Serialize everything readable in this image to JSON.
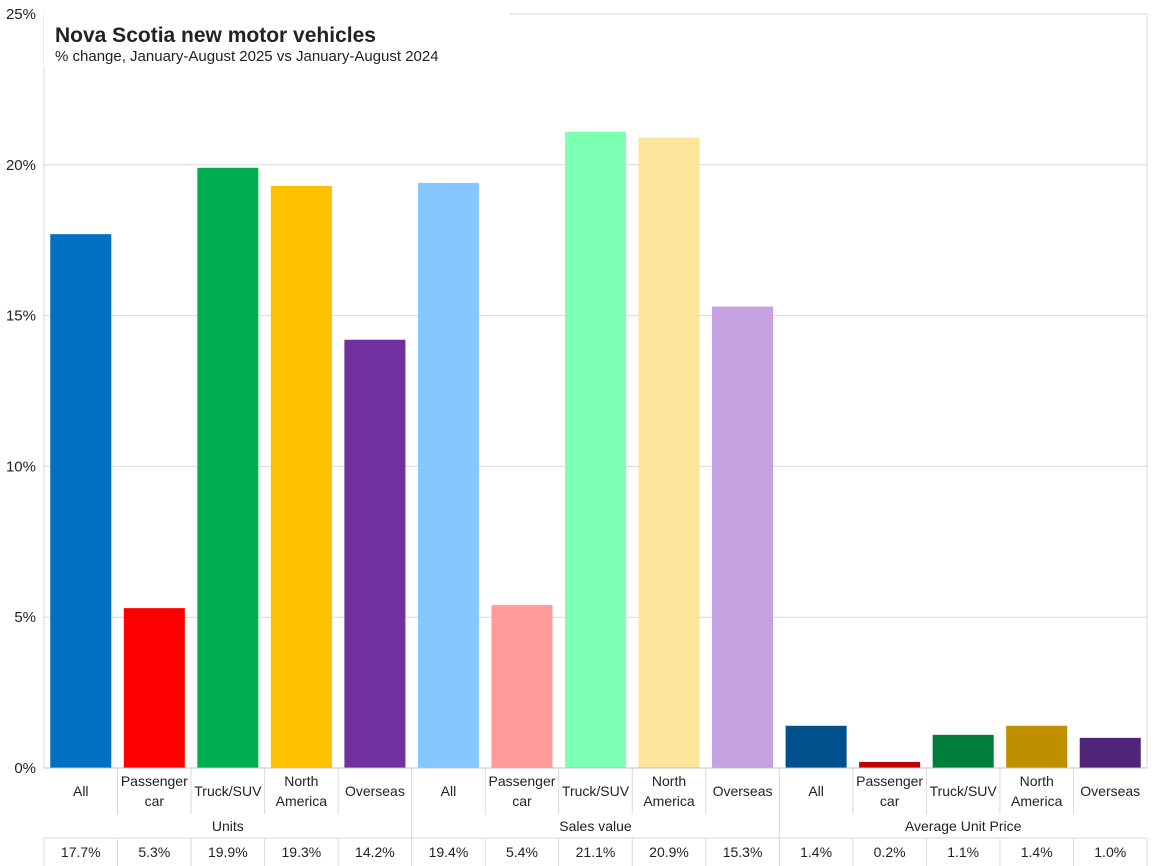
{
  "chart_data": {
    "type": "bar",
    "title": "Nova Scotia new motor vehicles",
    "subtitle": "% change, January-August 2025 vs January-August 2024",
    "y_ticks": [
      "0%",
      "5%",
      "10%",
      "15%",
      "20%",
      "25%"
    ],
    "ylim": [
      0,
      25
    ],
    "grid": true,
    "groups": [
      {
        "name": "Units",
        "bars": [
          {
            "category": "All",
            "value": 17.7,
            "label": "17.7%",
            "color": "#0070C0"
          },
          {
            "category": "Passenger car",
            "value": 5.3,
            "label": "5.3%",
            "color": "#FF0000"
          },
          {
            "category": "Truck/SUV",
            "value": 19.9,
            "label": "19.9%",
            "color": "#00B050"
          },
          {
            "category": "North America",
            "value": 19.3,
            "label": "19.3%",
            "color": "#FFC000"
          },
          {
            "category": "Overseas",
            "value": 14.2,
            "label": "14.2%",
            "color": "#7030A0"
          }
        ]
      },
      {
        "name": "Sales value",
        "bars": [
          {
            "category": "All",
            "value": 19.4,
            "label": "19.4%",
            "color": "#85C8FF"
          },
          {
            "category": "Passenger car",
            "value": 5.4,
            "label": "5.4%",
            "color": "#FF9B9B"
          },
          {
            "category": "Truck/SUV",
            "value": 21.1,
            "label": "21.1%",
            "color": "#7DFFB4"
          },
          {
            "category": "North America",
            "value": 20.9,
            "label": "20.9%",
            "color": "#FBE59A"
          },
          {
            "category": "Overseas",
            "value": 15.3,
            "label": "15.3%",
            "color": "#C6A2E2"
          }
        ]
      },
      {
        "name": "Average Unit Price",
        "bars": [
          {
            "category": "All",
            "value": 1.4,
            "label": "1.4%",
            "color": "#00508C"
          },
          {
            "category": "Passenger car",
            "value": 0.2,
            "label": "0.2%",
            "color": "#C00000"
          },
          {
            "category": "Truck/SUV",
            "value": 1.1,
            "label": "1.1%",
            "color": "#007D3A"
          },
          {
            "category": "North America",
            "value": 1.4,
            "label": "1.4%",
            "color": "#BF8F00"
          },
          {
            "category": "Overseas",
            "value": 1.0,
            "label": "1.0%",
            "color": "#502478"
          }
        ]
      }
    ]
  }
}
